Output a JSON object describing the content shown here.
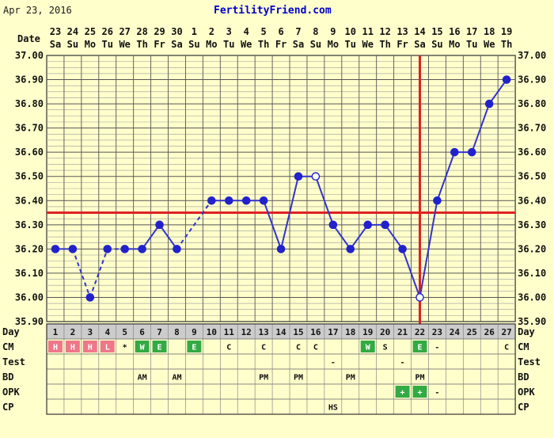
{
  "header": {
    "date_text": "Apr 23, 2016",
    "site": "FertilityFriend.com",
    "date_label": "Date"
  },
  "chart_data": {
    "type": "line",
    "ylim": [
      35.9,
      37.0
    ],
    "y_ticks": [
      "37.00",
      "36.90",
      "36.80",
      "36.70",
      "36.60",
      "36.50",
      "36.40",
      "36.30",
      "36.20",
      "36.10",
      "36.00",
      "35.90"
    ],
    "dates": [
      "23",
      "24",
      "25",
      "26",
      "27",
      "28",
      "29",
      "30",
      "1",
      "2",
      "3",
      "4",
      "5",
      "6",
      "7",
      "8",
      "9",
      "10",
      "11",
      "12",
      "13",
      "14",
      "15",
      "16",
      "17",
      "18",
      "19"
    ],
    "weekdays": [
      "Sa",
      "Su",
      "Mo",
      "Tu",
      "We",
      "Th",
      "Fr",
      "Sa",
      "Su",
      "Mo",
      "Tu",
      "We",
      "Th",
      "Fr",
      "Sa",
      "Su",
      "Mo",
      "Tu",
      "We",
      "Th",
      "Fr",
      "Sa",
      "Su",
      "Mo",
      "Tu",
      "We",
      "Th"
    ],
    "days": [
      "1",
      "2",
      "3",
      "4",
      "5",
      "6",
      "7",
      "8",
      "9",
      "10",
      "11",
      "12",
      "13",
      "14",
      "15",
      "16",
      "17",
      "18",
      "19",
      "20",
      "21",
      "22",
      "23",
      "24",
      "25",
      "26",
      "27"
    ],
    "temperatures": [
      36.2,
      36.2,
      36.0,
      36.2,
      36.2,
      36.2,
      36.3,
      36.2,
      null,
      36.4,
      36.4,
      36.4,
      36.4,
      36.2,
      36.5,
      36.5,
      36.3,
      36.2,
      36.3,
      36.3,
      36.2,
      36.0,
      36.4,
      36.6,
      36.6,
      36.8,
      36.9
    ],
    "open_points": [
      16,
      22
    ],
    "coverline": 36.35,
    "ovulation_day": 22,
    "day_label": "Day",
    "rows": [
      {
        "label": "CM",
        "cells": [
          "H",
          "H",
          "H",
          "L",
          "*",
          "W",
          "E",
          "",
          "E",
          "",
          "C",
          "",
          "C",
          "",
          "C",
          "C",
          "",
          "",
          "W",
          "S",
          "",
          "E",
          "-",
          "",
          "",
          "",
          "C"
        ]
      },
      {
        "label": "Test",
        "cells": [
          "",
          "",
          "",
          "",
          "",
          "",
          "",
          "",
          "",
          "",
          "",
          "",
          "",
          "",
          "",
          "",
          "-",
          "",
          "",
          "",
          "-",
          "",
          "",
          "",
          "",
          "",
          ""
        ]
      },
      {
        "label": "BD",
        "cells": [
          "",
          "",
          "",
          "",
          "",
          "AM",
          "",
          "AM",
          "",
          "",
          "",
          "",
          "PM",
          "",
          "PM",
          "",
          "",
          "PM",
          "",
          "",
          "",
          "PM",
          "",
          "",
          "",
          "",
          ""
        ]
      },
      {
        "label": "OPK",
        "cells": [
          "",
          "",
          "",
          "",
          "",
          "",
          "",
          "",
          "",
          "",
          "",
          "",
          "",
          "",
          "",
          "",
          "",
          "",
          "",
          "",
          "+",
          "+",
          "-",
          "",
          "",
          "",
          ""
        ]
      },
      {
        "label": "CP",
        "cells": [
          "",
          "",
          "",
          "",
          "",
          "",
          "",
          "",
          "",
          "",
          "",
          "",
          "",
          "",
          "",
          "",
          "HS",
          "",
          "",
          "",
          "",
          "",
          "",
          "",
          "",
          "",
          ""
        ]
      }
    ],
    "colors": {
      "background": "#ffffcc",
      "grid": "#777777",
      "line": "#3333cc",
      "point": "#2222cc",
      "coverline": "#dd2222",
      "ovulation": "#dd2222",
      "cm_menses": "#ee7788",
      "cm_fertile": "#33aa44",
      "opk_positive": "#33aa44",
      "label_fill": "#cccccc"
    }
  }
}
